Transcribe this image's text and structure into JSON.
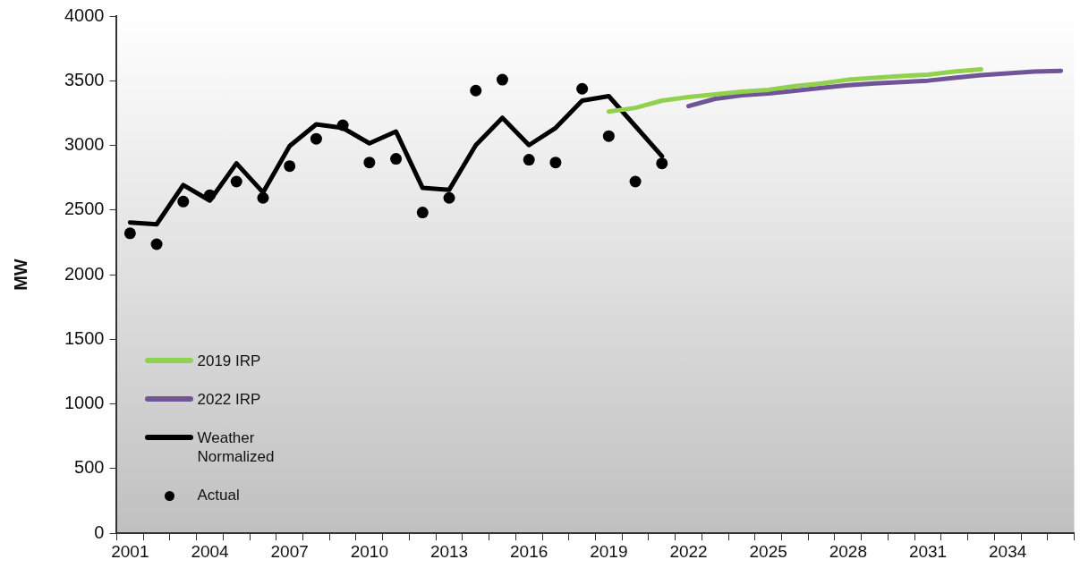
{
  "chart_data": {
    "type": "line",
    "ylabel": "MW",
    "legend": "bottom left",
    "categories": [
      "2001",
      null,
      null,
      "2004",
      null,
      null,
      "2007",
      null,
      null,
      "2010",
      null,
      null,
      "2013",
      null,
      null,
      "2016",
      null,
      null,
      "2019",
      null,
      null,
      "2022",
      null,
      null,
      "2025",
      null,
      null,
      "2028",
      null,
      null,
      "2031",
      null,
      null,
      "2034",
      null,
      null
    ],
    "ylim": [
      0,
      4000
    ],
    "yticks": [
      0,
      500,
      1000,
      1500,
      2000,
      2500,
      3000,
      3500,
      4000
    ],
    "series": [
      {
        "name": "2019 IRP",
        "marker": "none",
        "color": "#92d050",
        "values": [
          null,
          null,
          null,
          null,
          null,
          null,
          null,
          null,
          null,
          null,
          null,
          null,
          null,
          null,
          null,
          null,
          null,
          null,
          3262,
          3290,
          3346,
          3374,
          3395,
          3416,
          3430,
          3459,
          3480,
          3508,
          3522,
          3536,
          3547,
          3571,
          3588,
          null,
          null,
          null
        ]
      },
      {
        "name": "2022 IRP",
        "marker": "none",
        "color": "#6f5597",
        "values": [
          null,
          null,
          null,
          null,
          null,
          null,
          null,
          null,
          null,
          null,
          null,
          null,
          null,
          null,
          null,
          null,
          null,
          null,
          null,
          null,
          null,
          3304,
          3360,
          3388,
          3402,
          3423,
          3445,
          3465,
          3480,
          3490,
          3501,
          3522,
          3543,
          3557,
          3571,
          3577
        ]
      },
      {
        "name": "Weather Normalized",
        "marker": "none",
        "color": "#000000",
        "values": [
          2404,
          2390,
          2693,
          2573,
          2861,
          2636,
          2995,
          3163,
          3135,
          3016,
          3107,
          2671,
          2657,
          3002,
          3213,
          3002,
          3135,
          3346,
          3381,
          3149,
          2917,
          null,
          null,
          null,
          null,
          null,
          null,
          null,
          null,
          null,
          null,
          null,
          null,
          null,
          null,
          null
        ]
      },
      {
        "name": "Actual",
        "type": "scatter",
        "marker": "circle",
        "color": "#000000",
        "values": [
          2320,
          2236,
          2566,
          2615,
          2720,
          2594,
          2840,
          3051,
          3156,
          2868,
          2896,
          2481,
          2594,
          3424,
          3508,
          2889,
          2868,
          3438,
          3072,
          2720,
          2861,
          null,
          null,
          null,
          null,
          null,
          null,
          null,
          null,
          null,
          null,
          null,
          null,
          null,
          null,
          null
        ]
      }
    ]
  }
}
